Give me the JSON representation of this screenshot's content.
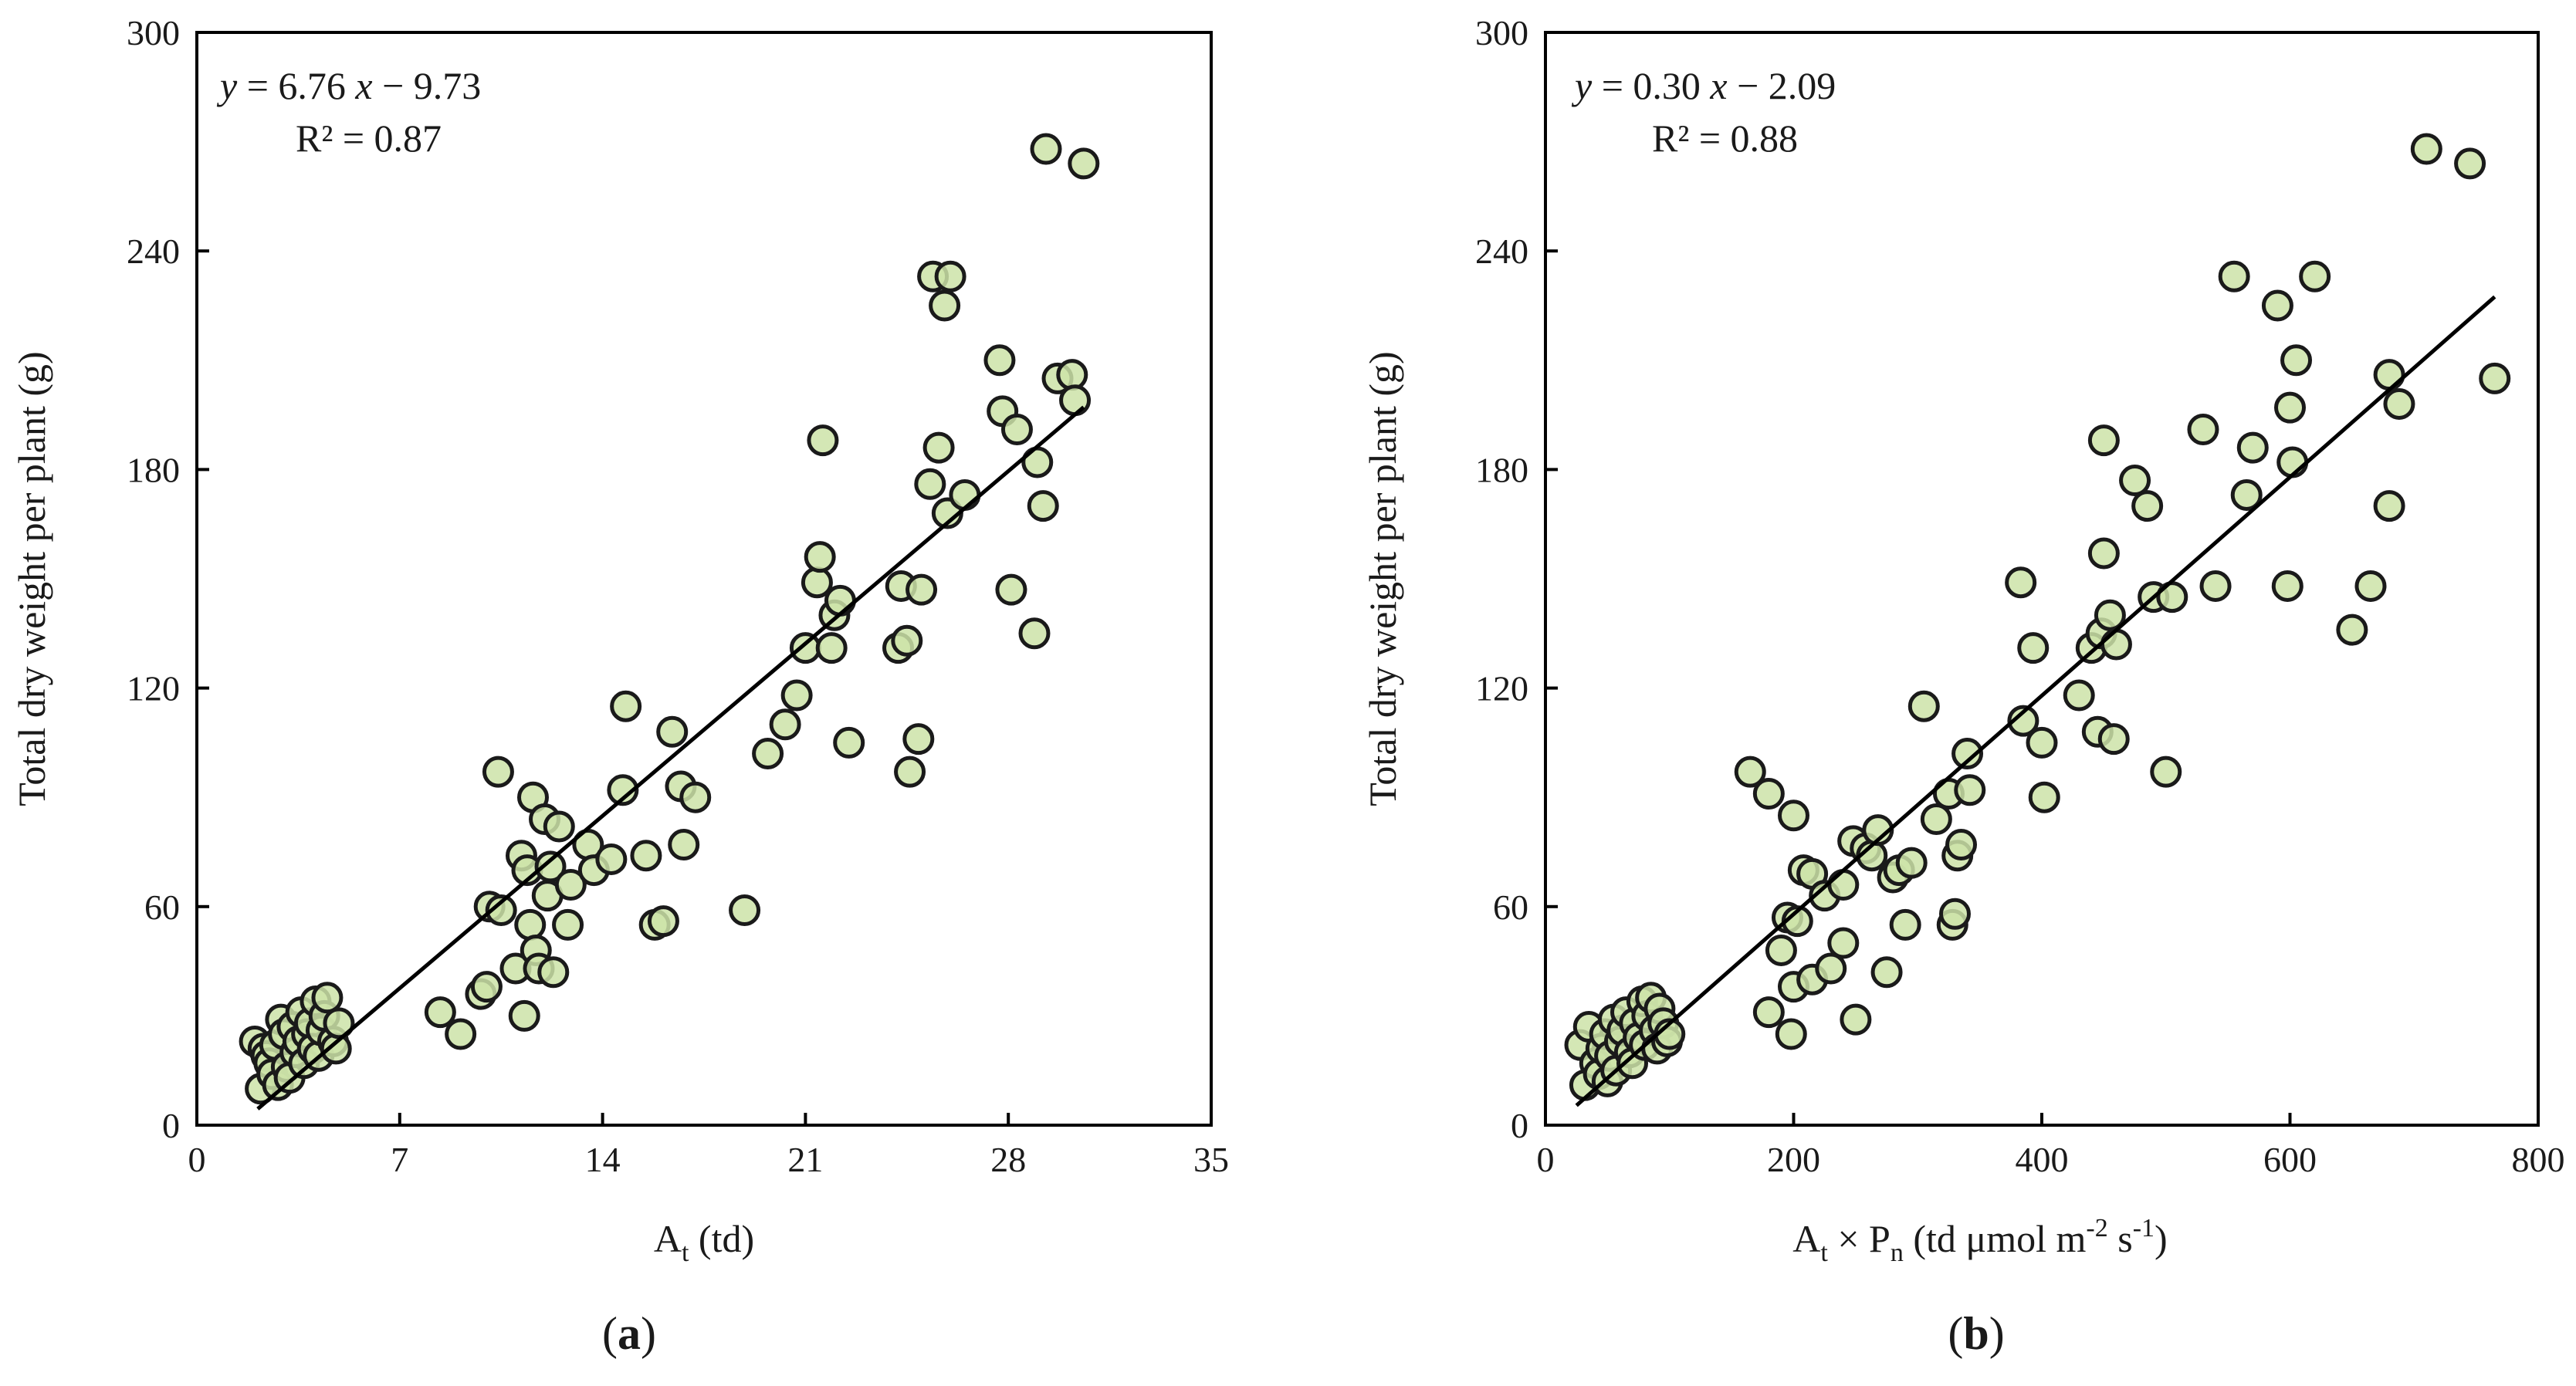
{
  "chart_data": [
    {
      "type": "scatter",
      "panel_label": {
        "open": "(",
        "letter": "a",
        "close": ")"
      },
      "xlabel": {
        "main": "A",
        "sub": "t",
        "rest": " (td)"
      },
      "ylabel": "Total dry weight per plant (g)",
      "xlim": [
        0,
        35
      ],
      "ylim": [
        0,
        300
      ],
      "xticks": [
        0,
        7,
        14,
        21,
        28,
        35
      ],
      "yticks": [
        0,
        60,
        120,
        180,
        240,
        300
      ],
      "equation": {
        "y": "y",
        "eq": " = 6.76 ",
        "x": "x",
        "rest": " − 9.73"
      },
      "r2": "R² = 0.87",
      "trendline": {
        "slope": 6.76,
        "intercept": -9.73,
        "x_range": [
          2.1,
          30.6
        ]
      },
      "marker_fill": "#cce3a8",
      "marker_stroke": "#1a1a1a",
      "points": [
        [
          2.0,
          23
        ],
        [
          2.2,
          10
        ],
        [
          2.3,
          21
        ],
        [
          2.4,
          19
        ],
        [
          2.5,
          17
        ],
        [
          2.6,
          14
        ],
        [
          2.7,
          22
        ],
        [
          2.8,
          11
        ],
        [
          2.9,
          29
        ],
        [
          3.0,
          25
        ],
        [
          3.1,
          16
        ],
        [
          3.2,
          13
        ],
        [
          3.3,
          27
        ],
        [
          3.4,
          20
        ],
        [
          3.5,
          23
        ],
        [
          3.6,
          31
        ],
        [
          3.7,
          17
        ],
        [
          3.8,
          25
        ],
        [
          3.9,
          28
        ],
        [
          4.0,
          21
        ],
        [
          4.1,
          34
        ],
        [
          4.2,
          19
        ],
        [
          4.3,
          26
        ],
        [
          4.4,
          30
        ],
        [
          4.5,
          35
        ],
        [
          4.7,
          23
        ],
        [
          4.8,
          21
        ],
        [
          4.9,
          28
        ],
        [
          8.4,
          31
        ],
        [
          9.1,
          25
        ],
        [
          9.8,
          36
        ],
        [
          10.0,
          38
        ],
        [
          10.1,
          60
        ],
        [
          10.4,
          97
        ],
        [
          10.5,
          59
        ],
        [
          11.0,
          43
        ],
        [
          11.2,
          74
        ],
        [
          11.3,
          30
        ],
        [
          11.4,
          70
        ],
        [
          11.5,
          55
        ],
        [
          11.6,
          90
        ],
        [
          11.7,
          48
        ],
        [
          11.8,
          43
        ],
        [
          12.0,
          84
        ],
        [
          12.1,
          63
        ],
        [
          12.2,
          71
        ],
        [
          12.3,
          42
        ],
        [
          12.5,
          82
        ],
        [
          12.8,
          55
        ],
        [
          12.9,
          66
        ],
        [
          13.5,
          77
        ],
        [
          13.7,
          70
        ],
        [
          14.3,
          73
        ],
        [
          14.7,
          92
        ],
        [
          14.8,
          115
        ],
        [
          15.5,
          74
        ],
        [
          15.8,
          55
        ],
        [
          16.1,
          56
        ],
        [
          16.4,
          108
        ],
        [
          16.7,
          93
        ],
        [
          16.8,
          77
        ],
        [
          17.2,
          90
        ],
        [
          18.9,
          59
        ],
        [
          19.7,
          102
        ],
        [
          20.3,
          110
        ],
        [
          20.7,
          118
        ],
        [
          21.0,
          131
        ],
        [
          21.4,
          149
        ],
        [
          21.5,
          156
        ],
        [
          21.6,
          188
        ],
        [
          21.9,
          131
        ],
        [
          22.0,
          140
        ],
        [
          22.2,
          144
        ],
        [
          22.5,
          105
        ],
        [
          24.2,
          131
        ],
        [
          24.3,
          148
        ],
        [
          24.5,
          133
        ],
        [
          24.6,
          97
        ],
        [
          24.9,
          106
        ],
        [
          25.0,
          147
        ],
        [
          25.3,
          176
        ],
        [
          25.4,
          233
        ],
        [
          25.6,
          186
        ],
        [
          25.8,
          225
        ],
        [
          25.9,
          168
        ],
        [
          26.0,
          233
        ],
        [
          26.5,
          173
        ],
        [
          27.7,
          210
        ],
        [
          27.8,
          196
        ],
        [
          28.1,
          147
        ],
        [
          28.3,
          191
        ],
        [
          28.9,
          135
        ],
        [
          29.0,
          182
        ],
        [
          29.2,
          170
        ],
        [
          29.3,
          268
        ],
        [
          29.7,
          205
        ],
        [
          30.2,
          206
        ],
        [
          30.3,
          199
        ],
        [
          30.6,
          264
        ]
      ]
    },
    {
      "type": "scatter",
      "panel_label": {
        "open": "(",
        "letter": "b",
        "close": ")"
      },
      "xlabel": {
        "a": "A",
        "a_sub": "t",
        "times": " × P",
        "p_sub": "n",
        "units": " (td μmol m",
        "exp1": "-2",
        "s": " s",
        "exp2": "-1",
        "close": ")"
      },
      "ylabel": "Total dry weight per plant (g)",
      "xlim": [
        0,
        800
      ],
      "ylim": [
        0,
        300
      ],
      "xticks": [
        0,
        200,
        400,
        600,
        800
      ],
      "yticks": [
        0,
        60,
        120,
        180,
        240,
        300
      ],
      "equation": {
        "y": "y",
        "eq": " = 0.30 ",
        "x": "x",
        "rest": " − 2.09"
      },
      "r2": "R² = 0.88",
      "trendline": {
        "slope": 0.3,
        "intercept": -2.09,
        "x_range": [
          25,
          765
        ]
      },
      "marker_fill": "#cce3a8",
      "marker_stroke": "#1a1a1a",
      "points": [
        [
          28,
          22
        ],
        [
          32,
          11
        ],
        [
          35,
          27
        ],
        [
          40,
          17
        ],
        [
          43,
          14
        ],
        [
          45,
          21
        ],
        [
          48,
          25
        ],
        [
          50,
          12
        ],
        [
          52,
          19
        ],
        [
          55,
          29
        ],
        [
          57,
          15
        ],
        [
          60,
          23
        ],
        [
          62,
          26
        ],
        [
          65,
          31
        ],
        [
          68,
          20
        ],
        [
          70,
          17
        ],
        [
          72,
          28
        ],
        [
          75,
          24
        ],
        [
          78,
          34
        ],
        [
          80,
          22
        ],
        [
          82,
          30
        ],
        [
          85,
          35
        ],
        [
          88,
          26
        ],
        [
          90,
          21
        ],
        [
          92,
          32
        ],
        [
          95,
          28
        ],
        [
          98,
          23
        ],
        [
          100,
          25
        ],
        [
          165,
          97
        ],
        [
          180,
          91
        ],
        [
          180,
          31
        ],
        [
          190,
          48
        ],
        [
          195,
          57
        ],
        [
          198,
          25
        ],
        [
          200,
          38
        ],
        [
          200,
          85
        ],
        [
          203,
          56
        ],
        [
          208,
          70
        ],
        [
          215,
          69
        ],
        [
          215,
          40
        ],
        [
          225,
          63
        ],
        [
          230,
          43
        ],
        [
          240,
          66
        ],
        [
          240,
          50
        ],
        [
          248,
          78
        ],
        [
          250,
          29
        ],
        [
          258,
          76
        ],
        [
          263,
          74
        ],
        [
          268,
          81
        ],
        [
          275,
          42
        ],
        [
          280,
          68
        ],
        [
          285,
          70
        ],
        [
          290,
          55
        ],
        [
          295,
          72
        ],
        [
          305,
          115
        ],
        [
          315,
          84
        ],
        [
          325,
          91
        ],
        [
          328,
          55
        ],
        [
          330,
          58
        ],
        [
          332,
          74
        ],
        [
          335,
          77
        ],
        [
          340,
          102
        ],
        [
          342,
          92
        ],
        [
          383,
          149
        ],
        [
          385,
          111
        ],
        [
          393,
          131
        ],
        [
          400,
          105
        ],
        [
          402,
          90
        ],
        [
          430,
          118
        ],
        [
          440,
          131
        ],
        [
          445,
          108
        ],
        [
          448,
          135
        ],
        [
          450,
          157
        ],
        [
          450,
          188
        ],
        [
          455,
          140
        ],
        [
          458,
          106
        ],
        [
          460,
          132
        ],
        [
          475,
          177
        ],
        [
          485,
          170
        ],
        [
          490,
          145
        ],
        [
          500,
          97
        ],
        [
          505,
          145
        ],
        [
          530,
          191
        ],
        [
          540,
          148
        ],
        [
          555,
          233
        ],
        [
          565,
          173
        ],
        [
          570,
          186
        ],
        [
          590,
          225
        ],
        [
          598,
          148
        ],
        [
          600,
          197
        ],
        [
          602,
          182
        ],
        [
          605,
          210
        ],
        [
          620,
          233
        ],
        [
          650,
          136
        ],
        [
          665,
          148
        ],
        [
          680,
          170
        ],
        [
          680,
          206
        ],
        [
          688,
          198
        ],
        [
          710,
          268
        ],
        [
          745,
          264
        ],
        [
          765,
          205
        ]
      ]
    }
  ]
}
